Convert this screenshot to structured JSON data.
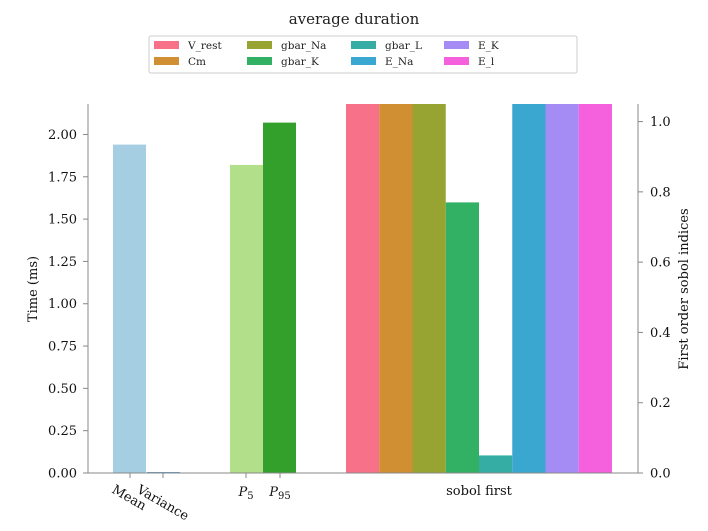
{
  "chart_data": {
    "type": "bar",
    "title": "average duration",
    "left_axis": {
      "ylabel": "Time (ms)",
      "ylim": [
        0,
        2.18
      ],
      "ticks": [
        "0.00",
        "0.25",
        "0.50",
        "0.75",
        "1.00",
        "1.25",
        "1.50",
        "1.75",
        "2.00"
      ],
      "categories": [
        "Mean",
        "Variance",
        "P5",
        "P95"
      ],
      "category_tick_labels": [
        "Mean",
        "Variance",
        "P",
        "P"
      ],
      "category_subscripts": [
        "",
        "",
        "5",
        "95"
      ],
      "bars": [
        {
          "category": "Mean",
          "value": 1.94,
          "color": "#a6cee3"
        },
        {
          "category": "Variance",
          "value": 0.005,
          "color": "#1f78b4"
        },
        {
          "category": "P5",
          "value": 1.82,
          "color": "#b2df8a"
        },
        {
          "category": "P95",
          "value": 2.07,
          "color": "#33a02c"
        }
      ]
    },
    "right_axis": {
      "ylabel": "First order sobol indices",
      "ylim": [
        0,
        1.05
      ],
      "ticks": [
        "0.0",
        "0.2",
        "0.4",
        "0.6",
        "0.8",
        "1.0"
      ],
      "group_label": "sobol first",
      "series": [
        {
          "name": "V_rest",
          "value": 1.05,
          "color": "#f77189"
        },
        {
          "name": "Cm",
          "value": 1.05,
          "color": "#d08f33"
        },
        {
          "name": "gbar_Na",
          "value": 1.05,
          "color": "#97a431"
        },
        {
          "name": "gbar_K",
          "value": 0.77,
          "color": "#32b165"
        },
        {
          "name": "gbar_L",
          "value": 0.05,
          "color": "#36ada4"
        },
        {
          "name": "E_Na",
          "value": 1.05,
          "color": "#39a7d0"
        },
        {
          "name": "E_K",
          "value": 1.05,
          "color": "#a48cf4"
        },
        {
          "name": "E_l",
          "value": 1.05,
          "color": "#f561dd"
        }
      ]
    },
    "legend": {
      "placement": "top-center",
      "entries": [
        "V_rest",
        "Cm",
        "gbar_Na",
        "gbar_K",
        "gbar_L",
        "E_Na",
        "E_K",
        "E_l"
      ]
    },
    "grid": false
  }
}
